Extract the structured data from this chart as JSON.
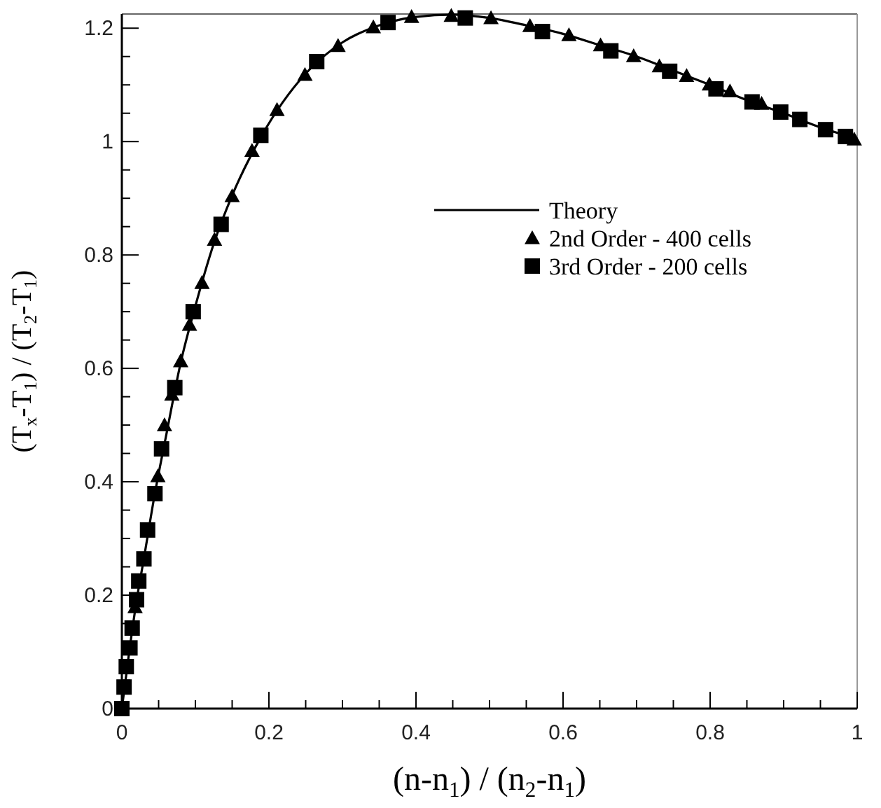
{
  "chart_data": {
    "type": "scatter",
    "xlabel": "(n-n$_{1}$) / (n$_{2}$-n$_{1}$)",
    "ylabel": "(T$_{x}$-T$_{1}$) / (T$_{2}$-T$_{1}$)",
    "xlim": [
      0,
      1
    ],
    "ylim": [
      0,
      1.225
    ],
    "xticks": [
      0,
      {
        "value": 0.05,
        "label": null
      },
      0.2,
      {
        "value": 0.1,
        "label": null
      },
      {
        "value": 0.15,
        "label": null
      },
      {
        "value": 0.25,
        "label": null
      },
      {
        "value": 0.3,
        "label": null
      },
      {
        "value": 0.35,
        "label": null
      },
      0.4,
      {
        "value": 0.45,
        "label": null
      },
      {
        "value": 0.5,
        "label": null
      },
      {
        "value": 0.55,
        "label": null
      },
      0.6,
      {
        "value": 0.65,
        "label": null
      },
      {
        "value": 0.7,
        "label": null
      },
      {
        "value": 0.75,
        "label": null
      },
      0.8,
      {
        "value": 0.85,
        "label": null
      },
      {
        "value": 0.9,
        "label": null
      },
      {
        "value": 0.95,
        "label": null
      },
      1
    ],
    "yticks": [
      0,
      {
        "value": 0.05,
        "label": null
      },
      {
        "value": 0.1,
        "label": null
      },
      {
        "value": 0.15,
        "label": null
      },
      0.2,
      {
        "value": 0.25,
        "label": null
      },
      {
        "value": 0.3,
        "label": null
      },
      {
        "value": 0.35,
        "label": null
      },
      0.4,
      {
        "value": 0.45,
        "label": null
      },
      {
        "value": 0.5,
        "label": null
      },
      {
        "value": 0.55,
        "label": null
      },
      0.6,
      {
        "value": 0.65,
        "label": null
      },
      {
        "value": 0.7,
        "label": null
      },
      {
        "value": 0.75,
        "label": null
      },
      0.8,
      {
        "value": 0.85,
        "label": null
      },
      {
        "value": 0.9,
        "label": null
      },
      {
        "value": 0.95,
        "label": null
      },
      1,
      {
        "value": 1.05,
        "label": null
      },
      {
        "value": 1.1,
        "label": null
      },
      {
        "value": 1.15,
        "label": null
      },
      1.2
    ],
    "grid": false,
    "legend": "top right",
    "series": [
      {
        "name": "Theory",
        "type": "line",
        "color": "#000000",
        "marker": "none",
        "line_style": "solid",
        "x": [
          0,
          0.01,
          0.02,
          0.03,
          0.045,
          0.06,
          0.08,
          0.1,
          0.125,
          0.15,
          0.19,
          0.25,
          0.3,
          0.35,
          0.4,
          0.45,
          0.5,
          0.55,
          0.6,
          0.65,
          0.7,
          0.75,
          0.8,
          0.85,
          0.9,
          0.95,
          1
        ],
        "values": [
          0,
          0.1,
          0.19,
          0.265,
          0.38,
          0.48,
          0.61,
          0.71,
          0.82,
          0.905,
          1.01,
          1.12,
          1.175,
          1.205,
          1.22,
          1.224,
          1.218,
          1.205,
          1.19,
          1.17,
          1.15,
          1.125,
          1.1,
          1.073,
          1.05,
          1.025,
          1.005
        ]
      },
      {
        "name": "2nd Order - 400 cells",
        "color": "#000000",
        "marker": "triangle",
        "x": [
          0.018,
          0.049,
          0.058,
          0.068,
          0.08,
          0.092,
          0.109,
          0.126,
          0.15,
          0.177,
          0.211,
          0.249,
          0.294,
          0.342,
          0.394,
          0.448,
          0.502,
          0.555,
          0.608,
          0.651,
          0.696,
          0.731,
          0.768,
          0.799,
          0.827,
          0.87,
          0.996
        ],
        "values": [
          0.179,
          0.41,
          0.5,
          0.554,
          0.613,
          0.677,
          0.751,
          0.827,
          0.904,
          0.984,
          1.056,
          1.118,
          1.169,
          1.202,
          1.22,
          1.222,
          1.218,
          1.204,
          1.188,
          1.17,
          1.151,
          1.133,
          1.116,
          1.101,
          1.089,
          1.067,
          1.004
        ]
      },
      {
        "name": "3rd Order - 200 cells",
        "color": "#000000",
        "marker": "square",
        "x": [
          0,
          0.003,
          0.006,
          0.011,
          0.014,
          0.02,
          0.023,
          0.03,
          0.035,
          0.045,
          0.054,
          0.072,
          0.097,
          0.135,
          0.189,
          0.265,
          0.362,
          0.467,
          0.572,
          0.665,
          0.745,
          0.808,
          0.857,
          0.896,
          0.922,
          0.957,
          0.984
        ],
        "values": [
          0,
          0.038,
          0.074,
          0.107,
          0.142,
          0.192,
          0.225,
          0.264,
          0.315,
          0.379,
          0.458,
          0.566,
          0.7,
          0.854,
          1.011,
          1.141,
          1.21,
          1.218,
          1.194,
          1.16,
          1.124,
          1.093,
          1.07,
          1.052,
          1.039,
          1.021,
          1.009
        ]
      }
    ]
  }
}
